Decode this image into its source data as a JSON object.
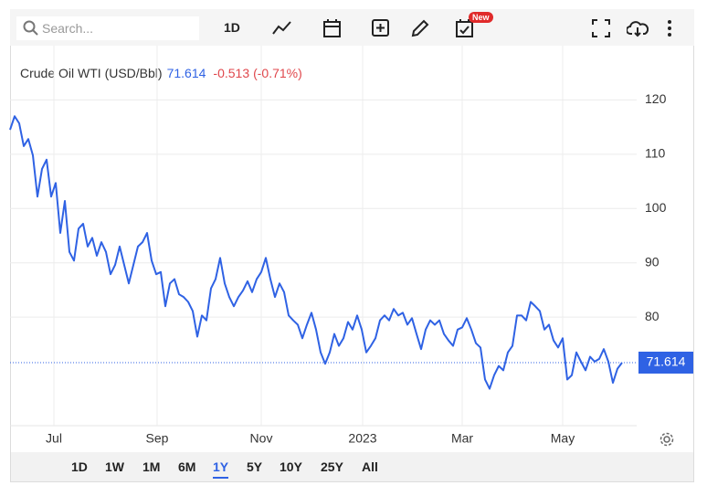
{
  "toolbar": {
    "search_placeholder": "Search...",
    "interval": "1D",
    "badge": "New"
  },
  "chart_data": {
    "type": "line",
    "title": "Crude Oil WTI (USD/Bbl)",
    "price": 71.614,
    "change": -0.513,
    "change_percent": "(-0.71%)",
    "series": [
      {
        "name": "Crude Oil WTI",
        "color": "#2f62e4",
        "values": [
          114.5,
          117,
          115.7,
          111.5,
          112.8,
          109.8,
          102.2,
          107.3,
          109,
          102.2,
          104.7,
          95.5,
          101.4,
          92,
          90.4,
          96.3,
          97.2,
          93,
          94.6,
          91.3,
          93.8,
          92,
          87.9,
          89.6,
          93,
          89.6,
          86.2,
          89.6,
          93,
          93.8,
          95.5,
          90.4,
          87.9,
          88.3,
          82,
          86.2,
          87,
          84.2,
          83.7,
          82.8,
          81.1,
          76.4,
          80.3,
          79.4,
          85.3,
          87,
          90.9,
          86.2,
          83.7,
          82,
          83.7,
          84.9,
          86.6,
          84.6,
          87,
          88.3,
          90.9,
          87,
          83.7,
          86.2,
          84.6,
          80.3,
          79.4,
          78.6,
          76.1,
          78.6,
          80.8,
          77.7,
          73.5,
          71.4,
          73.5,
          76.9,
          74.7,
          76.1,
          79.1,
          77.7,
          80.3,
          77.7,
          73.5,
          74.7,
          76.1,
          79.4,
          80.3,
          79.4,
          81.5,
          80.3,
          80.8,
          78.6,
          79.8,
          76.9,
          74.1,
          77.7,
          79.4,
          78.6,
          79.4,
          76.9,
          75.7,
          74.7,
          77.7,
          78.1,
          79.8,
          77.7,
          75.2,
          74.4,
          68.5,
          66.8,
          69.3,
          71,
          70.2,
          73.5,
          74.7,
          80.3,
          80.3,
          79.4,
          82.8,
          82,
          81.1,
          77.7,
          78.6,
          75.7,
          74.4,
          76.1,
          68.5,
          69.3,
          73.5,
          71.8,
          70.2,
          72.7,
          71.8,
          72.3,
          74.1,
          71.8,
          67.9,
          70.5,
          71.614
        ]
      }
    ],
    "xlim": [
      0,
      137.2
    ],
    "xticks": [
      {
        "value": 9.6,
        "label": "Jul"
      },
      {
        "value": 32.2,
        "label": "Sep"
      },
      {
        "value": 55,
        "label": "Nov"
      },
      {
        "value": 77.2,
        "label": "2023"
      },
      {
        "value": 99,
        "label": "Mar"
      },
      {
        "value": 121,
        "label": "May"
      }
    ],
    "ylim": [
      60,
      130
    ],
    "yticks": [
      80,
      90,
      100,
      110,
      120
    ],
    "grid": true
  },
  "range_buttons": {
    "items": [
      "1D",
      "1W",
      "1M",
      "6M",
      "1Y",
      "5Y",
      "10Y",
      "25Y",
      "All"
    ],
    "active": "1Y"
  }
}
